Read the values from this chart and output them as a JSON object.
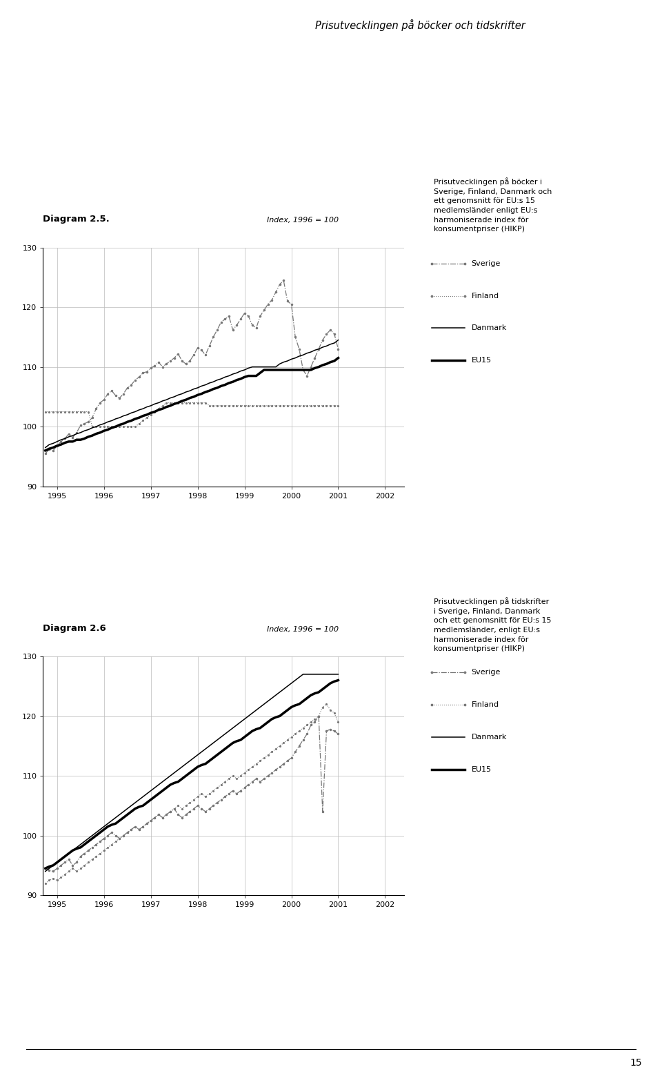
{
  "page_title": "Prisutvecklingen på böcker och tidskrifter",
  "page_number": "15",
  "diag1_label": "Diagram 2.5.",
  "diag2_label": "Diagram 2.6",
  "index_label": "Index, 1996 = 100",
  "legend_labels": [
    "Sverige",
    "Finland",
    "Danmark",
    "EU15"
  ],
  "diag1_desc": "Prisutvecklingen på böcker i\nSverige, Finland, Danmark och\nett genomsnitt för EU:s 15\nmedlemsländer enligt EU:s\nharmoniserade index för\nkonsumentpriser (HIKP)",
  "diag2_desc": "Prisutvecklingen på tidskrifter\ni Sverige, Finland, Danmark\noch ett genomsnitt för EU:s 15\nmedlemsländer, enligt EU:s\nharmoniserade index för\nkonsumentpriser (HIKP)",
  "ylim": [
    90,
    130
  ],
  "yticks": [
    90,
    100,
    110,
    120,
    130
  ],
  "xticks": [
    1995,
    1996,
    1997,
    1998,
    1999,
    2000,
    2001,
    2002
  ],
  "start_date": 1994.75,
  "diag1_sverige": [
    95.5,
    96.2,
    96.0,
    96.8,
    97.5,
    98.0,
    98.8,
    98.2,
    99.0,
    100.2,
    100.5,
    100.8,
    101.5,
    103.0,
    104.0,
    104.5,
    105.5,
    106.0,
    105.2,
    104.8,
    105.5,
    106.5,
    107.0,
    107.8,
    108.3,
    109.0,
    109.2,
    109.8,
    110.2,
    110.8,
    110.0,
    110.5,
    111.0,
    111.5,
    112.2,
    111.0,
    110.5,
    111.0,
    112.0,
    113.2,
    112.8,
    112.0,
    113.5,
    115.0,
    116.2,
    117.5,
    118.0,
    118.5,
    116.2,
    117.0,
    118.0,
    119.0,
    118.5,
    117.0,
    116.5,
    118.5,
    119.5,
    120.5,
    121.2,
    122.5,
    123.8,
    124.5,
    121.0,
    120.5,
    115.0,
    113.0,
    109.5,
    108.5,
    110.0,
    111.5,
    113.0,
    114.5,
    115.5,
    116.2,
    115.5,
    113.0
  ],
  "diag1_finland": [
    102.5,
    102.5,
    102.5,
    102.5,
    102.5,
    102.5,
    102.5,
    102.5,
    102.5,
    102.5,
    102.5,
    102.5,
    100.0,
    100.0,
    100.0,
    100.0,
    100.0,
    100.0,
    100.0,
    100.0,
    100.0,
    100.0,
    100.0,
    100.0,
    100.5,
    101.0,
    101.5,
    102.0,
    102.5,
    103.0,
    103.5,
    104.0,
    104.0,
    104.0,
    104.0,
    104.0,
    104.0,
    104.0,
    104.0,
    104.0,
    104.0,
    104.0,
    103.5,
    103.5,
    103.5,
    103.5,
    103.5,
    103.5,
    103.5,
    103.5,
    103.5,
    103.5,
    103.5,
    103.5,
    103.5,
    103.5,
    103.5,
    103.5,
    103.5,
    103.5,
    103.5,
    103.5,
    103.5,
    103.5,
    103.5,
    103.5,
    103.5,
    103.5,
    103.5,
    103.5,
    103.5,
    103.5,
    103.5,
    103.5,
    103.5,
    103.5
  ],
  "diag1_danmark": [
    96.5,
    97.0,
    97.2,
    97.5,
    97.8,
    98.0,
    98.3,
    98.5,
    98.8,
    99.0,
    99.3,
    99.5,
    99.8,
    100.0,
    100.3,
    100.5,
    100.8,
    101.0,
    101.3,
    101.5,
    101.8,
    102.0,
    102.3,
    102.5,
    102.8,
    103.0,
    103.3,
    103.5,
    103.8,
    104.0,
    104.3,
    104.5,
    104.8,
    105.0,
    105.3,
    105.5,
    105.8,
    106.0,
    106.3,
    106.5,
    106.8,
    107.0,
    107.3,
    107.5,
    107.8,
    108.0,
    108.3,
    108.5,
    108.8,
    109.0,
    109.3,
    109.5,
    109.8,
    110.0,
    110.0,
    110.0,
    110.0,
    110.0,
    110.0,
    110.0,
    110.5,
    110.8,
    111.0,
    111.3,
    111.5,
    111.8,
    112.0,
    112.3,
    112.5,
    112.8,
    113.0,
    113.3,
    113.5,
    113.8,
    114.0,
    114.5
  ],
  "diag1_eu15": [
    96.0,
    96.3,
    96.5,
    96.8,
    97.0,
    97.3,
    97.5,
    97.5,
    97.8,
    97.8,
    98.0,
    98.3,
    98.5,
    98.8,
    99.0,
    99.3,
    99.5,
    99.8,
    100.0,
    100.3,
    100.5,
    100.8,
    101.0,
    101.3,
    101.5,
    101.8,
    102.0,
    102.3,
    102.5,
    102.8,
    103.0,
    103.3,
    103.5,
    103.8,
    104.0,
    104.3,
    104.5,
    104.8,
    105.0,
    105.3,
    105.5,
    105.8,
    106.0,
    106.3,
    106.5,
    106.8,
    107.0,
    107.3,
    107.5,
    107.8,
    108.0,
    108.3,
    108.5,
    108.5,
    108.5,
    109.0,
    109.5,
    109.5,
    109.5,
    109.5,
    109.5,
    109.5,
    109.5,
    109.5,
    109.5,
    109.5,
    109.5,
    109.5,
    109.5,
    109.8,
    110.0,
    110.3,
    110.5,
    110.8,
    111.0,
    111.5
  ],
  "diag2_sverige": [
    94.5,
    94.2,
    94.0,
    94.5,
    95.0,
    95.5,
    96.0,
    95.0,
    95.5,
    96.5,
    97.0,
    97.5,
    98.0,
    98.5,
    99.0,
    99.5,
    100.0,
    100.5,
    100.0,
    99.5,
    100.0,
    100.5,
    101.0,
    101.5,
    101.0,
    101.5,
    102.0,
    102.5,
    103.0,
    103.5,
    103.0,
    103.5,
    104.0,
    104.5,
    103.5,
    103.0,
    103.5,
    104.0,
    104.5,
    105.0,
    104.5,
    104.0,
    104.5,
    105.0,
    105.5,
    106.0,
    106.5,
    107.0,
    107.5,
    107.0,
    107.5,
    108.0,
    108.5,
    109.0,
    109.5,
    109.0,
    109.5,
    110.0,
    110.5,
    111.0,
    111.5,
    112.0,
    112.5,
    113.0,
    114.0,
    115.0,
    116.0,
    117.0,
    118.5,
    119.0,
    120.0,
    104.0,
    117.5,
    117.8,
    117.5,
    117.0
  ],
  "diag2_finland": [
    92.0,
    92.5,
    92.8,
    92.5,
    93.0,
    93.5,
    94.0,
    94.5,
    94.0,
    94.5,
    95.0,
    95.5,
    96.0,
    96.5,
    97.0,
    97.5,
    98.0,
    98.5,
    99.0,
    99.5,
    100.0,
    100.5,
    101.0,
    101.5,
    101.0,
    101.5,
    102.0,
    102.5,
    103.0,
    103.5,
    103.0,
    103.5,
    104.0,
    104.5,
    105.0,
    104.5,
    105.0,
    105.5,
    106.0,
    106.5,
    107.0,
    106.5,
    107.0,
    107.5,
    108.0,
    108.5,
    109.0,
    109.5,
    110.0,
    109.5,
    110.0,
    110.5,
    111.0,
    111.5,
    112.0,
    112.5,
    113.0,
    113.5,
    114.0,
    114.5,
    115.0,
    115.5,
    116.0,
    116.5,
    117.0,
    117.5,
    118.0,
    118.5,
    119.0,
    119.5,
    120.0,
    121.5,
    122.0,
    121.0,
    120.5,
    119.0
  ],
  "diag2_danmark": [
    94.0,
    94.5,
    95.0,
    95.5,
    96.0,
    96.5,
    97.0,
    97.5,
    98.0,
    98.5,
    99.0,
    99.5,
    100.0,
    100.5,
    101.0,
    101.5,
    102.0,
    102.5,
    103.0,
    103.5,
    104.0,
    104.5,
    105.0,
    105.5,
    106.0,
    106.5,
    107.0,
    107.5,
    108.0,
    108.5,
    109.0,
    109.5,
    110.0,
    110.5,
    111.0,
    111.5,
    112.0,
    112.5,
    113.0,
    113.5,
    114.0,
    114.5,
    115.0,
    115.5,
    116.0,
    116.5,
    117.0,
    117.5,
    118.0,
    118.5,
    119.0,
    119.5,
    120.0,
    120.5,
    121.0,
    121.5,
    122.0,
    122.5,
    123.0,
    123.5,
    124.0,
    124.5,
    125.0,
    125.5,
    126.0,
    126.5,
    127.0,
    127.0,
    127.0,
    127.0,
    127.0,
    127.0,
    127.0,
    127.0,
    127.0,
    127.0
  ],
  "diag2_eu15": [
    94.5,
    94.8,
    95.0,
    95.5,
    96.0,
    96.5,
    97.0,
    97.5,
    97.8,
    98.0,
    98.5,
    99.0,
    99.5,
    100.0,
    100.5,
    101.0,
    101.5,
    101.8,
    102.0,
    102.5,
    103.0,
    103.5,
    104.0,
    104.5,
    104.8,
    105.0,
    105.5,
    106.0,
    106.5,
    107.0,
    107.5,
    108.0,
    108.5,
    108.8,
    109.0,
    109.5,
    110.0,
    110.5,
    111.0,
    111.5,
    111.8,
    112.0,
    112.5,
    113.0,
    113.5,
    114.0,
    114.5,
    115.0,
    115.5,
    115.8,
    116.0,
    116.5,
    117.0,
    117.5,
    117.8,
    118.0,
    118.5,
    119.0,
    119.5,
    119.8,
    120.0,
    120.5,
    121.0,
    121.5,
    121.8,
    122.0,
    122.5,
    123.0,
    123.5,
    123.8,
    124.0,
    124.5,
    125.0,
    125.5,
    125.8,
    126.0
  ]
}
